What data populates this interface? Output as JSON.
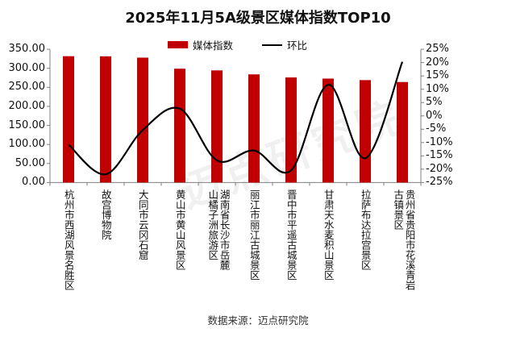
{
  "title": "2025年11月5A级景区媒体指数TOP10",
  "legend": {
    "bar_label": "媒体指数",
    "line_label": "环比"
  },
  "source": "数据来源：迈点研究院",
  "watermark": "迈点研究院",
  "colors": {
    "bar": "#c00000",
    "line": "#000000",
    "axis": "#7f7f7f"
  },
  "chart_data": {
    "type": "bar",
    "title": "2025年11月5A级景区媒体指数TOP10",
    "categories": [
      "杭州市西湖风景名胜区",
      "故宫博物院",
      "大同市云冈石窟",
      "黄山市黄山风景区",
      "湖南省长沙市岳麓山橘子洲旅游区",
      "丽江市丽江古城景区",
      "晋中市平遥古城景区",
      "甘肃天水麦积山景区",
      "拉萨布达拉宫景区",
      "贵州省贵阳市花溪青岩古镇景区"
    ],
    "series": [
      {
        "name": "媒体指数",
        "type": "bar",
        "axis": "left",
        "values": [
          331.8,
          331.5,
          328.0,
          299.0,
          294.5,
          284.0,
          276.0,
          273.0,
          269.0,
          264.0
        ]
      },
      {
        "name": "环比",
        "type": "line",
        "axis": "right",
        "unit": "%",
        "values": [
          -10.8,
          -21.9,
          -5.3,
          2.7,
          -16.7,
          -13.0,
          -20.4,
          11.7,
          -15.9,
          20.3
        ]
      }
    ],
    "xlabel": "",
    "ylabel_left": "",
    "ylabel_right": "",
    "ylim_left": [
      0,
      350
    ],
    "ylim_right": [
      -25,
      25
    ],
    "yticks_left": [
      "0.00",
      "50.00",
      "100.00",
      "150.00",
      "200.00",
      "250.00",
      "300.00",
      "350.00"
    ],
    "yticks_right": [
      "-25%",
      "-20%",
      "-15%",
      "-10%",
      "-5%",
      "0%",
      "5%",
      "10%",
      "15%",
      "20%",
      "25%"
    ],
    "grid": false,
    "legend_position": "top"
  },
  "x_labels": [
    [
      "杭州市西湖风景名胜区"
    ],
    [
      "故宫博物院"
    ],
    [
      "大同市云冈石窟"
    ],
    [
      "黄山市黄山风景区"
    ],
    [
      "湖南省长沙市岳麓",
      "山橘子洲旅游区"
    ],
    [
      "丽江市丽江古城景区"
    ],
    [
      "晋中市平遥古城景区"
    ],
    [
      "甘肃天水麦积山景区"
    ],
    [
      "拉萨布达拉宫景区"
    ],
    [
      "贵州省贵阳市花溪青岩",
      "古镇景区"
    ]
  ]
}
